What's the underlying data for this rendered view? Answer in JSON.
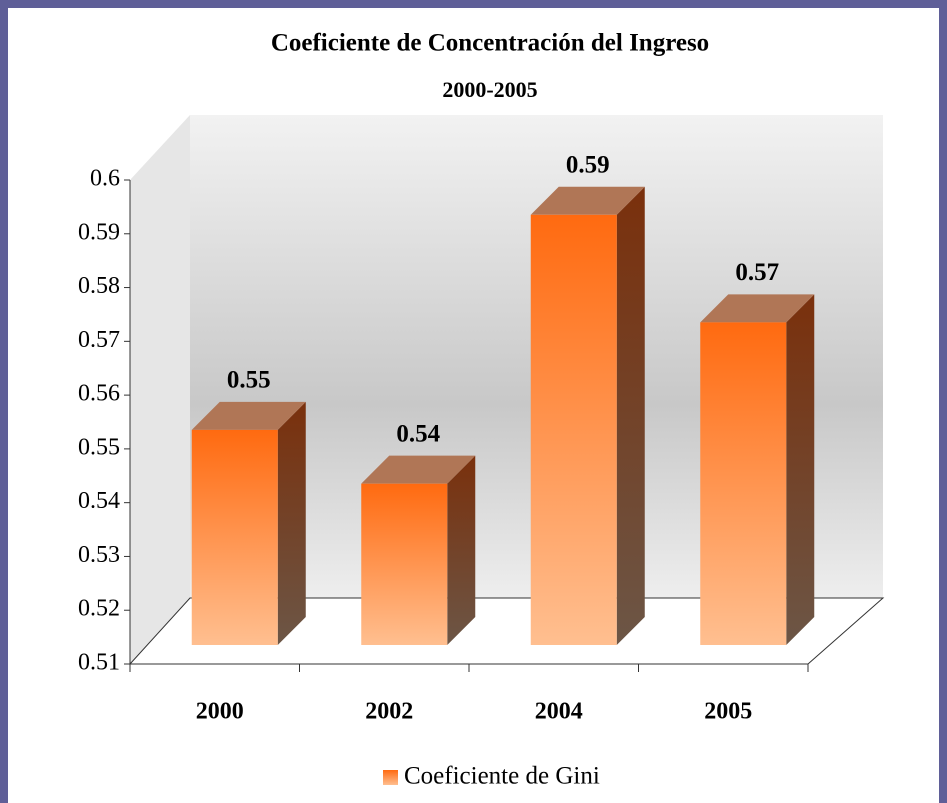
{
  "chart_data": {
    "type": "bar",
    "title": "Coeficiente de Concentración del Ingreso",
    "subtitle": "2000-2005",
    "categories": [
      "2000",
      "2002",
      "2004",
      "2005"
    ],
    "series": [
      {
        "name": "Coeficiente de Gini",
        "color": "#ff6a10",
        "values": [
          0.55,
          0.54,
          0.59,
          0.57
        ]
      }
    ],
    "ylim": [
      0.51,
      0.6
    ],
    "yticks": [
      0.51,
      0.52,
      0.53,
      0.54,
      0.55,
      0.56,
      0.57,
      0.58,
      0.59,
      0.6
    ],
    "grid": false,
    "legend": "bottom"
  }
}
